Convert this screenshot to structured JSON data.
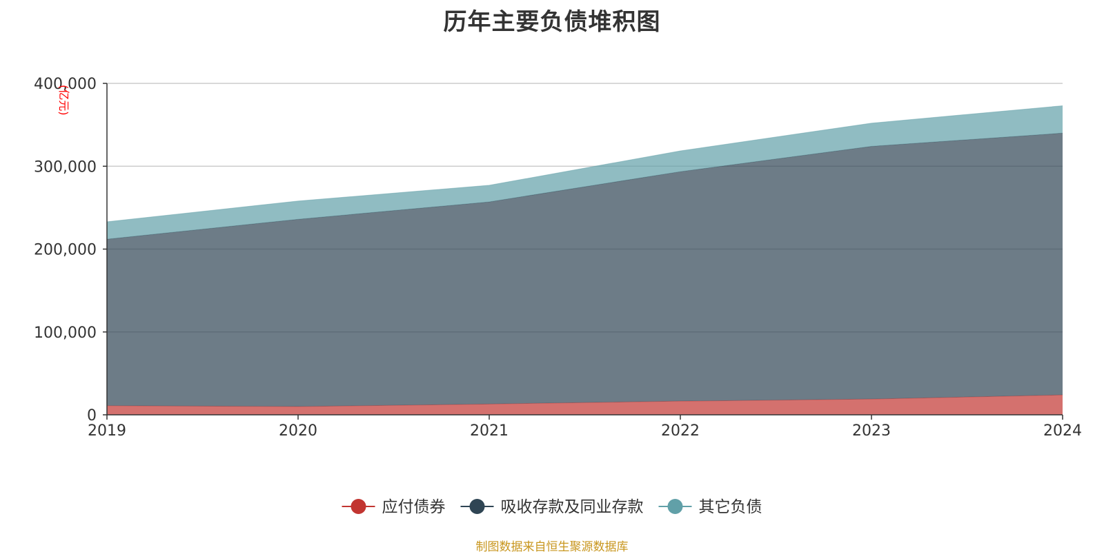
{
  "chart_data": {
    "type": "area",
    "stacked": true,
    "title": "历年主要负债堆积图",
    "y_unit_label": "(亿元)",
    "x": [
      "2019",
      "2020",
      "2021",
      "2022",
      "2023",
      "2024"
    ],
    "ylim": [
      0,
      400000
    ],
    "yticks": [
      0,
      100000,
      200000,
      300000,
      400000
    ],
    "ytick_labels": [
      "0",
      "100,000",
      "200,000",
      "300,000",
      "400,000"
    ],
    "grid": true,
    "legend_position": "bottom",
    "series": [
      {
        "name": "应付债券",
        "color": "#c23531",
        "values": [
          11000,
          10000,
          13000,
          16500,
          19000,
          24000
        ]
      },
      {
        "name": "吸收存款及同业存款",
        "color": "#2f4554",
        "values": [
          201000,
          226000,
          244000,
          277000,
          305000,
          316000
        ]
      },
      {
        "name": "其它负债",
        "color": "#61a0a8",
        "values": [
          21000,
          22000,
          20000,
          25000,
          28000,
          33000
        ]
      }
    ]
  },
  "source_note": "制图数据来自恒生聚源数据库"
}
